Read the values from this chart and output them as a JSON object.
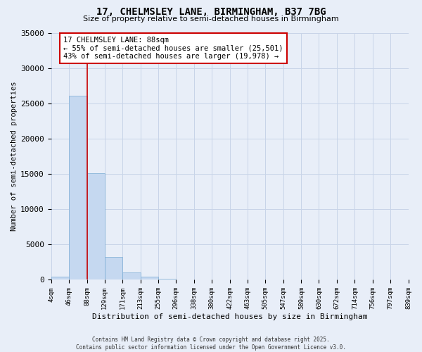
{
  "title": "17, CHELMSLEY LANE, BIRMINGHAM, B37 7BG",
  "subtitle": "Size of property relative to semi-detached houses in Birmingham",
  "xlabel": "Distribution of semi-detached houses by size in Birmingham",
  "ylabel": "Number of semi-detached properties",
  "footer_line1": "Contains HM Land Registry data © Crown copyright and database right 2025.",
  "footer_line2": "Contains public sector information licensed under the Open Government Licence v3.0.",
  "bins": [
    4,
    46,
    88,
    129,
    171,
    213,
    255,
    296,
    338,
    380,
    422,
    463,
    505,
    547,
    589,
    630,
    672,
    714,
    756,
    797,
    839
  ],
  "bin_labels": [
    "4sqm",
    "46sqm",
    "88sqm",
    "129sqm",
    "171sqm",
    "213sqm",
    "255sqm",
    "296sqm",
    "338sqm",
    "380sqm",
    "422sqm",
    "463sqm",
    "505sqm",
    "547sqm",
    "589sqm",
    "630sqm",
    "672sqm",
    "714sqm",
    "756sqm",
    "797sqm",
    "839sqm"
  ],
  "values": [
    400,
    26100,
    15100,
    3250,
    1050,
    420,
    150,
    40,
    10,
    5,
    2,
    1,
    0,
    0,
    0,
    0,
    0,
    0,
    0,
    0
  ],
  "bar_color": "#c5d8f0",
  "bar_edgecolor": "#7bacd4",
  "grid_color": "#c8d4e8",
  "background_color": "#e8eef8",
  "property_line_x": 88,
  "property_line_color": "#cc0000",
  "annotation_title": "17 CHELMSLEY LANE: 88sqm",
  "annotation_line1": "← 55% of semi-detached houses are smaller (25,501)",
  "annotation_line2": "43% of semi-detached houses are larger (19,978) →",
  "annotation_box_color": "#cc0000",
  "ylim": [
    0,
    35000
  ],
  "yticks": [
    0,
    5000,
    10000,
    15000,
    20000,
    25000,
    30000,
    35000
  ],
  "ytick_labels": [
    "0",
    "5000",
    "10000",
    "15000",
    "20000",
    "25000",
    "30000",
    "35000"
  ]
}
